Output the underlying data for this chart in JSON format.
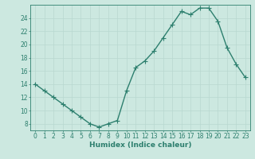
{
  "x": [
    0,
    1,
    2,
    3,
    4,
    5,
    6,
    7,
    8,
    9,
    10,
    11,
    12,
    13,
    14,
    15,
    16,
    17,
    18,
    19,
    20,
    21,
    22,
    23
  ],
  "y": [
    14,
    13,
    12,
    11,
    10,
    9,
    8,
    7.5,
    8,
    8.5,
    13,
    16.5,
    17.5,
    19,
    21,
    23,
    25,
    24.5,
    25.5,
    25.5,
    23.5,
    19.5,
    17,
    15
  ],
  "line_color": "#2d7f6e",
  "marker": "+",
  "marker_color": "#2d7f6e",
  "bg_color": "#cce8e0",
  "grid_color": "#b8d8d0",
  "xlabel": "Humidex (Indice chaleur)",
  "xlabel_fontsize": 6.5,
  "ylabel_ticks": [
    8,
    10,
    12,
    14,
    16,
    18,
    20,
    22,
    24
  ],
  "xtick_labels": [
    "0",
    "1",
    "2",
    "3",
    "4",
    "5",
    "6",
    "7",
    "8",
    "9",
    "10",
    "11",
    "12",
    "13",
    "14",
    "15",
    "16",
    "17",
    "18",
    "19",
    "20",
    "21",
    "22",
    "23"
  ],
  "ylim": [
    7,
    26
  ],
  "xlim": [
    -0.5,
    23.5
  ],
  "tick_fontsize": 5.5,
  "axis_color": "#2d7f6e",
  "line_width": 1.0,
  "marker_size": 4
}
